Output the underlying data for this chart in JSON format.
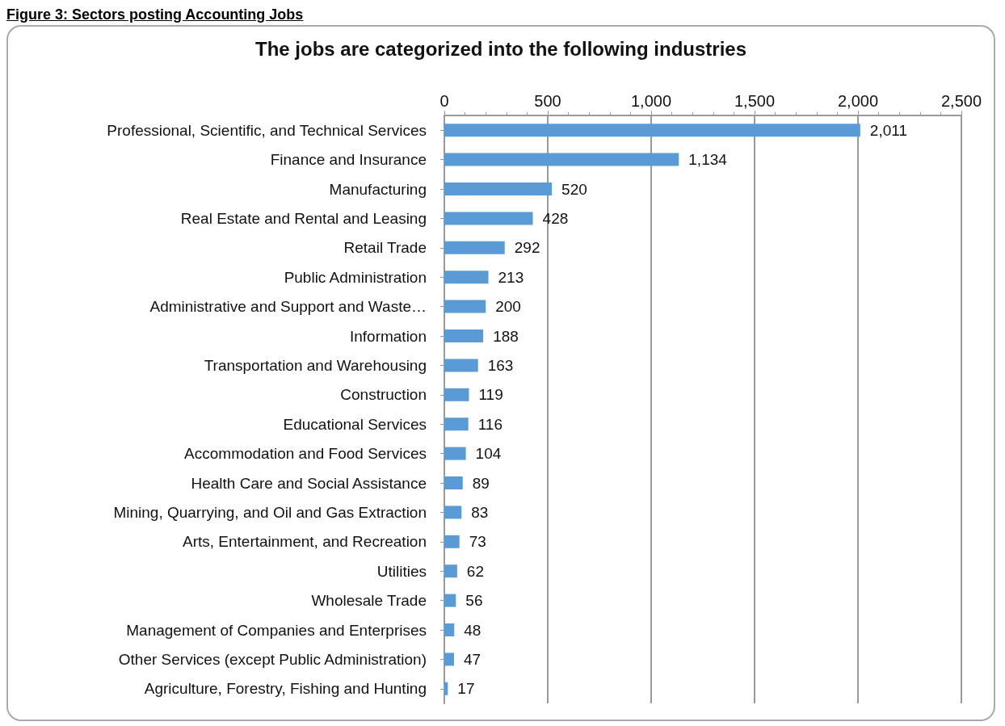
{
  "chart_data": {
    "type": "bar",
    "orientation": "horizontal",
    "title": "The jobs are categorized into the following industries",
    "annotations": [
      "Figure 3: Sectors posting Accounting Jobs"
    ],
    "categories": [
      "Professional, Scientific, and Technical Services",
      "Finance and Insurance",
      "Manufacturing",
      "Real Estate and Rental and Leasing",
      "Retail Trade",
      "Public Administration",
      "Administrative and Support and Waste…",
      "Information",
      "Transportation and Warehousing",
      "Construction",
      "Educational Services",
      "Accommodation and Food Services",
      "Health Care and Social Assistance",
      "Mining, Quarrying, and Oil and Gas Extraction",
      "Arts, Entertainment, and Recreation",
      "Utilities",
      "Wholesale Trade",
      "Management of Companies and Enterprises",
      "Other Services (except Public Administration)",
      "Agriculture, Forestry, Fishing and Hunting"
    ],
    "values": [
      2011,
      1134,
      520,
      428,
      292,
      213,
      200,
      188,
      163,
      119,
      116,
      104,
      89,
      83,
      73,
      62,
      56,
      48,
      47,
      17
    ],
    "value_labels": [
      "2,011",
      "1,134",
      "520",
      "428",
      "292",
      "213",
      "200",
      "188",
      "163",
      "119",
      "116",
      "104",
      "89",
      "83",
      "73",
      "62",
      "56",
      "48",
      "47",
      "17"
    ],
    "color": "#5b9bd5",
    "xlim": [
      0,
      2500
    ],
    "xticks": [
      0,
      500,
      {
        "value": 1000,
        "label": "1,000"
      },
      {
        "value": 1500,
        "label": "1,500"
      },
      {
        "value": 2000,
        "label": "2,000"
      },
      {
        "value": 2500,
        "label": "2,500"
      }
    ],
    "grid": "x"
  }
}
